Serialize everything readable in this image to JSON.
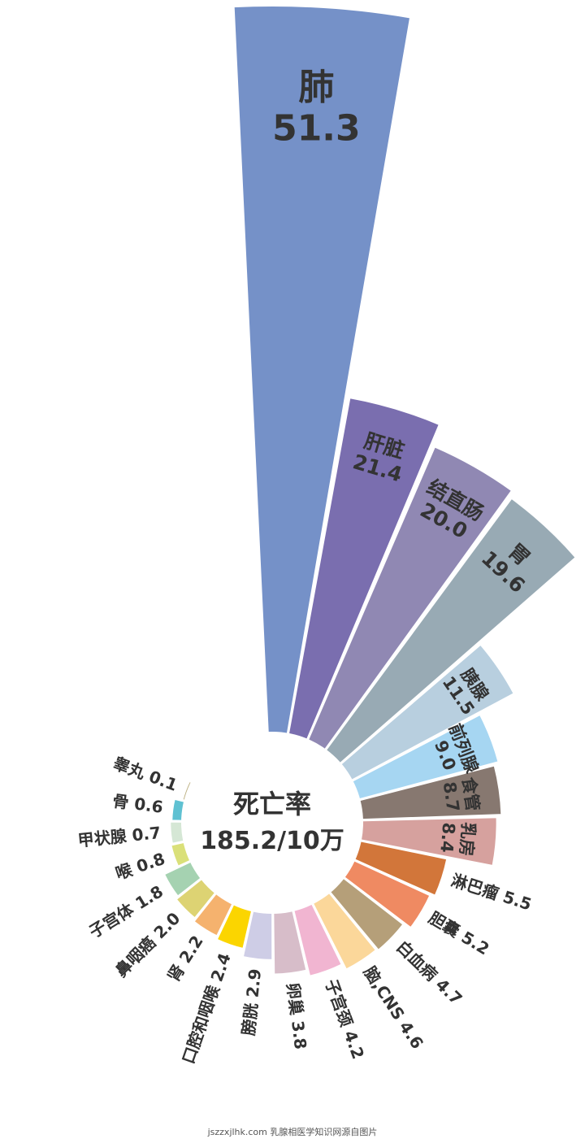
{
  "chart_data": {
    "type": "pie",
    "variant": "nightingale-rose",
    "center_label": {
      "line1": "死亡率",
      "line2": "185.2/10万"
    },
    "grid": false,
    "legend": "none",
    "categories": [
      "肺",
      "肝脏",
      "结直肠",
      "胃",
      "胰腺",
      "前列腺",
      "食管",
      "乳房",
      "淋巴瘤",
      "胆囊",
      "白血病",
      "脑,CNS",
      "子宫颈",
      "卵巢",
      "膀胱",
      "口腔和咽喉",
      "肾",
      "鼻咽癌",
      "子宫体",
      "喉",
      "甲状腺",
      "骨",
      "睾丸"
    ],
    "values": [
      51.3,
      21.4,
      20.0,
      19.6,
      11.5,
      9.0,
      8.7,
      8.4,
      5.5,
      5.2,
      4.7,
      4.6,
      4.2,
      3.8,
      2.9,
      2.4,
      2.2,
      2.0,
      1.8,
      0.8,
      0.7,
      0.6,
      0.1
    ],
    "value_labels": [
      "51.3",
      "21.4",
      "20.0",
      "19.6",
      "11.5",
      "9.0",
      "8.7",
      "8.4",
      "5.5",
      "5.2",
      "4.7",
      "4.6",
      "4.2",
      "3.8",
      "2.9",
      "2.4",
      "2.2",
      "2.0",
      "1.8",
      "0.8",
      "0.7",
      "0.6",
      "0.1"
    ],
    "colors": [
      "#7591c8",
      "#7a6eaf",
      "#9088b3",
      "#98aab4",
      "#b8cfdf",
      "#a6d6f2",
      "#877870",
      "#d6a19e",
      "#d2763a",
      "#ef8a62",
      "#b59f79",
      "#fbd79a",
      "#f1b5d1",
      "#d7bdc9",
      "#cecde6",
      "#fbd500",
      "#f5b26e",
      "#ddd373",
      "#a5d2b1",
      "#dae079",
      "#d5e7d5",
      "#5fc1d2",
      "#beb285"
    ]
  },
  "watermark": "jszzxjlhk.com 乳腺相医学知识网源自图片"
}
